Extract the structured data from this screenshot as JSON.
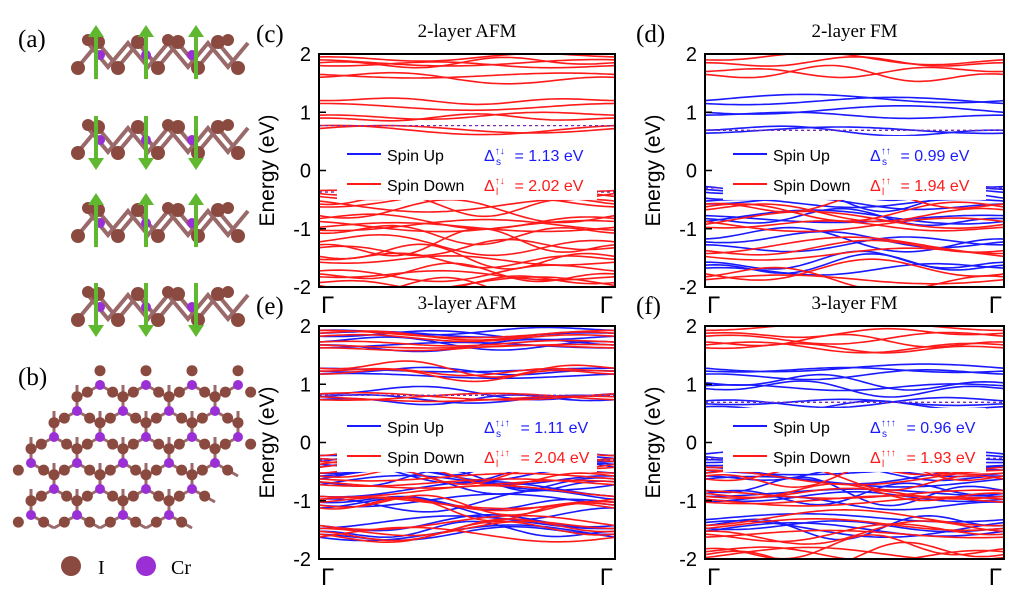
{
  "figure": {
    "atoms_legend": {
      "iodine_label": "I",
      "chromium_label": "Cr"
    },
    "colors": {
      "spin_up": "#1a1aff",
      "spin_down": "#ff1a1a",
      "iodine": "#8b4a40",
      "chromium": "#9a2fd6",
      "spin_arrow": "#5fb830",
      "bond": "#9a6a6a"
    }
  },
  "chart_data": [
    {
      "panel_label": "(c)",
      "type": "line",
      "title": "2-layer AFM",
      "ylabel": "Energy (eV)",
      "ylim": [
        -2,
        2
      ],
      "yticks": [
        "2",
        "1",
        "0",
        "-1",
        "-2"
      ],
      "xticks": [
        "Γ",
        "Γ"
      ],
      "spin_split": false,
      "vbm": -0.37,
      "cbm": 0.77,
      "legend": {
        "up": "Spin Up",
        "down": "Spin Down"
      },
      "gap_s": {
        "sup": "↑↓",
        "value": "= 1.13 eV"
      },
      "gap_l": {
        "sup": "↑↓",
        "value": "= 2.02 eV"
      },
      "series": [
        {
          "name": "Spin Down",
          "color": "#ff1a1a",
          "values_near_gamma": [
            1.95,
            1.85,
            1.65,
            1.2,
            0.95,
            0.77,
            -0.37,
            -0.55,
            -0.8,
            -1.0,
            -1.25,
            -1.5,
            -1.75,
            -1.95
          ]
        }
      ]
    },
    {
      "panel_label": "(d)",
      "type": "line",
      "title": "2-layer FM",
      "ylabel": "Energy (eV)",
      "ylim": [
        -2,
        2
      ],
      "yticks": [
        "2",
        "1",
        "0",
        "-1",
        "-2"
      ],
      "xticks": [
        "Γ",
        "Γ"
      ],
      "spin_split": true,
      "vbm": -0.3,
      "cbm": 0.69,
      "legend": {
        "up": "Spin Up",
        "down": "Spin Down"
      },
      "gap_s": {
        "sup": "↑↑",
        "value": "= 0.99 eV"
      },
      "gap_l": {
        "sup": "↑↑",
        "value": "= 1.94 eV"
      },
      "series": [
        {
          "name": "Spin Up",
          "color": "#1a1aff",
          "values_near_gamma": [
            1.2,
            1.0,
            0.69,
            -0.3,
            -0.5,
            -0.8,
            -1.2,
            -1.6
          ]
        },
        {
          "name": "Spin Down",
          "color": "#ff1a1a",
          "values_near_gamma": [
            1.9,
            1.7,
            -0.6,
            -0.9,
            -1.4,
            -1.8
          ]
        }
      ]
    },
    {
      "panel_label": "(e)",
      "type": "line",
      "title": "3-layer AFM",
      "ylabel": "Energy (eV)",
      "ylim": [
        -2,
        2
      ],
      "yticks": [
        "2",
        "1",
        "0",
        "-1",
        "-2"
      ],
      "xticks": [
        "Γ",
        "Γ"
      ],
      "spin_split": false,
      "vbm": -0.3,
      "cbm": 0.81,
      "legend": {
        "up": "Spin Up",
        "down": "Spin Down"
      },
      "gap_s": {
        "sup": "↑↓↑",
        "value": "= 1.11 eV"
      },
      "gap_l": {
        "sup": "↑↓↑",
        "value": "= 2.04 eV"
      },
      "series": [
        {
          "name": "Spin Up",
          "color": "#1a1aff",
          "values_near_gamma": [
            1.9,
            1.7,
            1.25,
            0.81,
            -0.3,
            -0.6,
            -1.0,
            -1.5
          ]
        },
        {
          "name": "Spin Down",
          "color": "#ff1a1a",
          "values_near_gamma": [
            1.9,
            1.7,
            1.25,
            0.81,
            -0.3,
            -0.6,
            -1.0,
            -1.5
          ]
        }
      ]
    },
    {
      "panel_label": "(f)",
      "type": "line",
      "title": "3-layer FM",
      "ylabel": "Energy (eV)",
      "ylim": [
        -2,
        2
      ],
      "yticks": [
        "2",
        "1",
        "0",
        "-1",
        "-2"
      ],
      "xticks": [
        "Γ",
        "Γ"
      ],
      "spin_split": true,
      "vbm": -0.27,
      "cbm": 0.69,
      "legend": {
        "up": "Spin Up",
        "down": "Spin Down"
      },
      "gap_s": {
        "sup": "↑↑↑",
        "value": "= 0.96 eV"
      },
      "gap_l": {
        "sup": "↑↑↑",
        "value": "= 1.93 eV"
      },
      "series": [
        {
          "name": "Spin Up",
          "color": "#1a1aff",
          "values_near_gamma": [
            1.25,
            1.0,
            0.69,
            -0.27,
            -0.5,
            -0.9,
            -1.4
          ]
        },
        {
          "name": "Spin Down",
          "color": "#ff1a1a",
          "values_near_gamma": [
            1.9,
            1.7,
            -0.5,
            -0.9,
            -1.5,
            -1.9
          ]
        }
      ]
    }
  ],
  "structure_panels": [
    {
      "panel_label": "(a)"
    },
    {
      "panel_label": "(b)"
    }
  ]
}
